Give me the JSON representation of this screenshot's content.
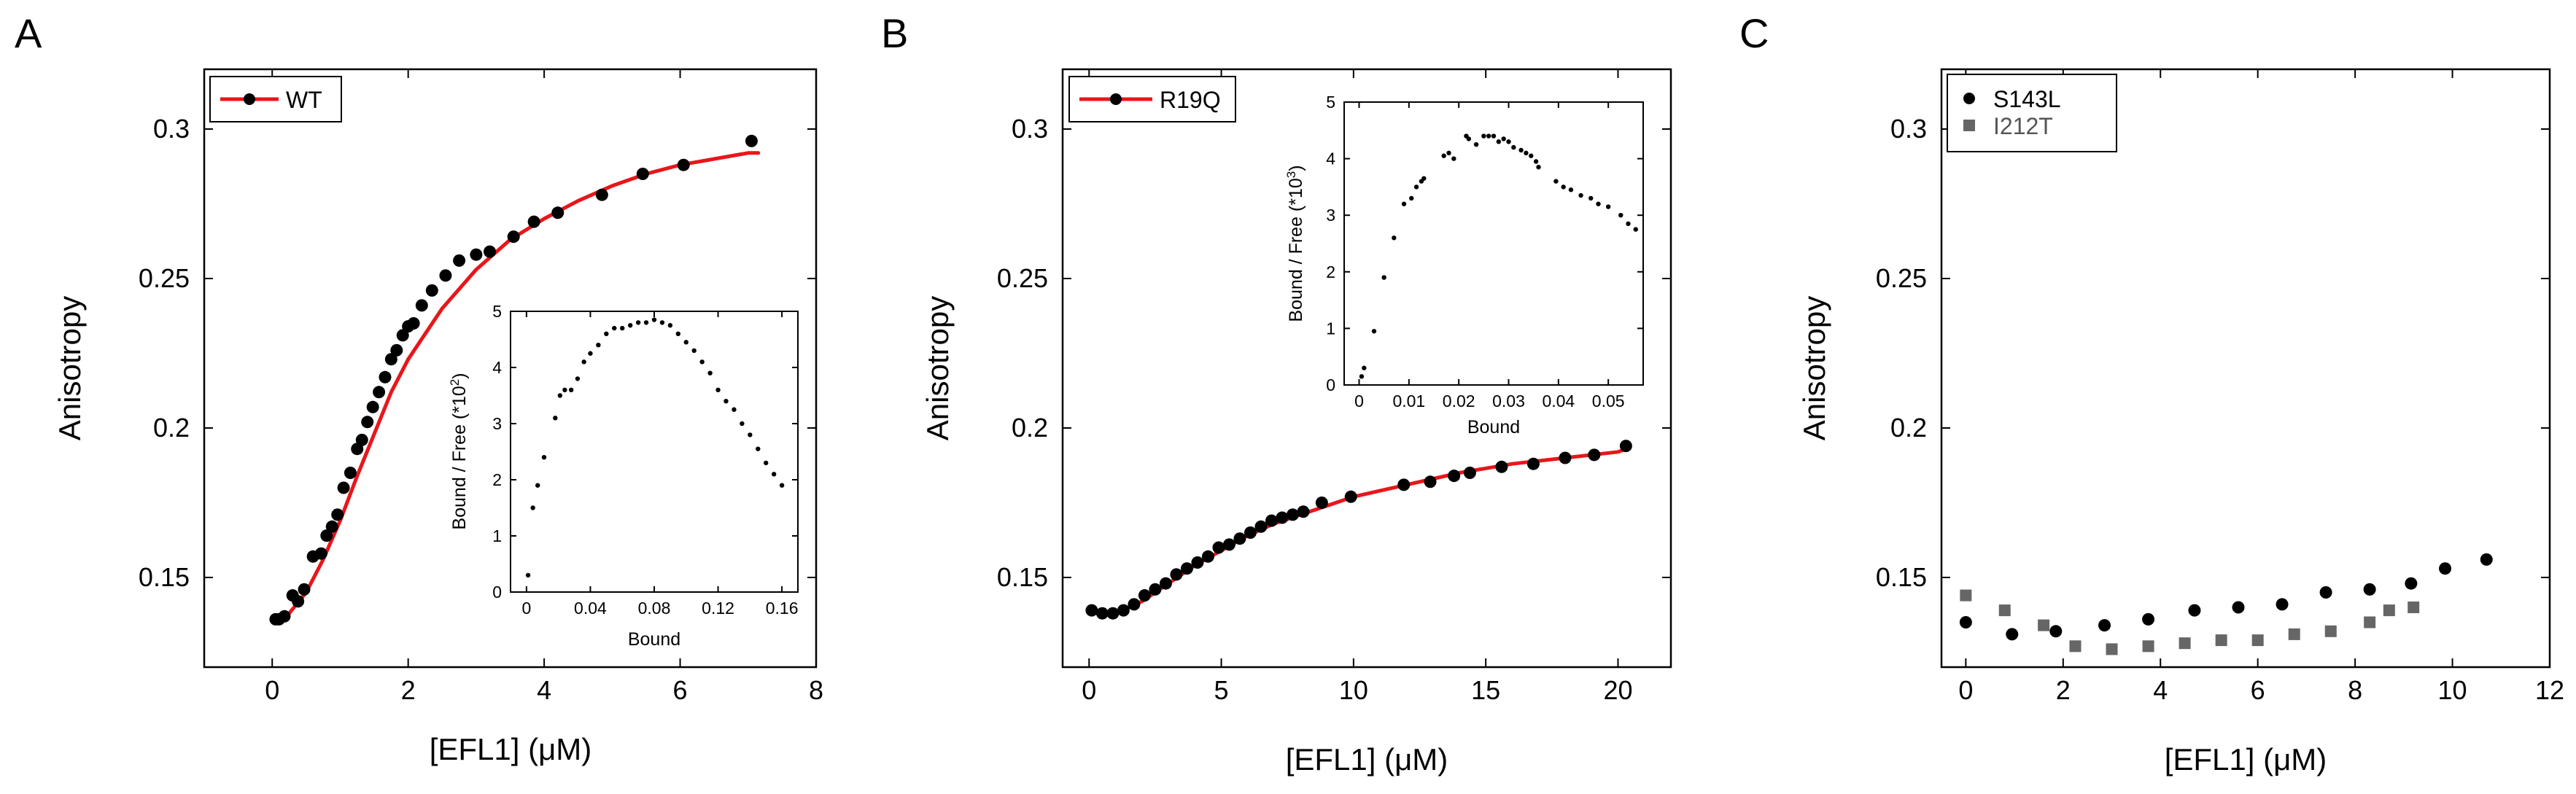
{
  "figure": {
    "colors": {
      "fit_line": "#e8161a",
      "marker_black": "#000000",
      "marker_gray": "#666666",
      "axis": "#000000"
    }
  },
  "chart_data": [
    {
      "panel": "A",
      "type": "scatter",
      "title": "",
      "xlabel": "[EFL1] (μM)",
      "ylabel": "Anisotropy",
      "xlim": [
        -1,
        8
      ],
      "ylim": [
        0.12,
        0.32
      ],
      "xticks": [
        0,
        2,
        4,
        6,
        8
      ],
      "yticks": [
        0.15,
        0.2,
        0.25,
        0.3
      ],
      "xtick_labels": [
        "0",
        "2",
        "4",
        "6",
        "8"
      ],
      "ytick_labels": [
        "0.15",
        "0.2",
        "0.25",
        "0.3"
      ],
      "legend": {
        "position": "top-left",
        "entries": [
          "WT"
        ]
      },
      "series": [
        {
          "name": "WT",
          "marker": "circle",
          "color": "#000000",
          "x": [
            0.05,
            0.1,
            0.18,
            0.3,
            0.38,
            0.47,
            0.6,
            0.72,
            0.8,
            0.88,
            0.96,
            1.05,
            1.15,
            1.25,
            1.32,
            1.4,
            1.48,
            1.57,
            1.66,
            1.75,
            1.83,
            1.92,
            2.0,
            2.08,
            2.2,
            2.35,
            2.55,
            2.75,
            3.0,
            3.2,
            3.55,
            3.85,
            4.2,
            4.85,
            5.45,
            6.05,
            7.05
          ],
          "y": [
            0.136,
            0.136,
            0.137,
            0.144,
            0.142,
            0.146,
            0.157,
            0.158,
            0.164,
            0.167,
            0.171,
            0.18,
            0.185,
            0.193,
            0.196,
            0.202,
            0.207,
            0.212,
            0.217,
            0.223,
            0.226,
            0.231,
            0.234,
            0.235,
            0.241,
            0.246,
            0.251,
            0.256,
            0.258,
            0.259,
            0.264,
            0.269,
            0.272,
            0.278,
            0.285,
            0.288,
            0.296
          ]
        },
        {
          "name": "WT fit",
          "style": "line",
          "color": "#e8161a",
          "x": [
            0,
            0.25,
            0.5,
            0.75,
            1.0,
            1.25,
            1.5,
            1.75,
            2.0,
            2.5,
            3.0,
            3.5,
            4.0,
            4.5,
            5.0,
            5.5,
            6.0,
            6.5,
            7.0,
            7.15
          ],
          "y": [
            0.136,
            0.138,
            0.145,
            0.156,
            0.169,
            0.184,
            0.198,
            0.212,
            0.223,
            0.24,
            0.253,
            0.263,
            0.27,
            0.276,
            0.281,
            0.285,
            0.288,
            0.29,
            0.292,
            0.292
          ]
        }
      ],
      "inset": {
        "type": "scatter",
        "xlabel": "Bound",
        "ylabel": "Bound / Free (*10",
        "ylabel_exponent": "2",
        "ylabel_close": ")",
        "xlim": [
          -0.01,
          0.17
        ],
        "ylim": [
          0,
          5
        ],
        "xticks": [
          0,
          0.04,
          0.08,
          0.12,
          0.16
        ],
        "yticks": [
          0,
          1,
          2,
          3,
          4,
          5
        ],
        "xtick_labels": [
          "0",
          "0.04",
          "0.08",
          "0.12",
          "0.16"
        ],
        "ytick_labels": [
          "0",
          "1",
          "2",
          "3",
          "4",
          "5"
        ],
        "x": [
          0.001,
          0.004,
          0.007,
          0.011,
          0.018,
          0.021,
          0.024,
          0.028,
          0.032,
          0.036,
          0.04,
          0.045,
          0.05,
          0.055,
          0.06,
          0.065,
          0.07,
          0.075,
          0.08,
          0.085,
          0.09,
          0.095,
          0.1,
          0.105,
          0.11,
          0.115,
          0.12,
          0.125,
          0.13,
          0.135,
          0.14,
          0.145,
          0.15,
          0.155,
          0.16
        ],
        "y": [
          0.3,
          1.5,
          1.9,
          2.4,
          3.1,
          3.5,
          3.6,
          3.6,
          3.8,
          4.1,
          4.25,
          4.4,
          4.6,
          4.7,
          4.7,
          4.75,
          4.8,
          4.8,
          4.85,
          4.8,
          4.75,
          4.6,
          4.45,
          4.3,
          4.1,
          3.9,
          3.6,
          3.4,
          3.25,
          3.0,
          2.8,
          2.55,
          2.3,
          2.1,
          1.9
        ]
      }
    },
    {
      "panel": "B",
      "type": "scatter",
      "title": "",
      "xlabel": "[EFL1] (μM)",
      "ylabel": "Anisotropy",
      "xlim": [
        -1,
        22
      ],
      "ylim": [
        0.12,
        0.32
      ],
      "xticks": [
        0,
        5,
        10,
        15,
        20
      ],
      "yticks": [
        0.15,
        0.2,
        0.25,
        0.3
      ],
      "xtick_labels": [
        "0",
        "5",
        "10",
        "15",
        "20"
      ],
      "ytick_labels": [
        "0.15",
        "0.2",
        "0.25",
        "0.3"
      ],
      "legend": {
        "position": "top-left",
        "entries": [
          "R19Q"
        ]
      },
      "series": [
        {
          "name": "R19Q",
          "marker": "circle",
          "color": "#000000",
          "x": [
            0.1,
            0.5,
            0.9,
            1.3,
            1.7,
            2.1,
            2.5,
            2.9,
            3.3,
            3.7,
            4.1,
            4.5,
            4.9,
            5.3,
            5.7,
            6.1,
            6.5,
            6.9,
            7.3,
            7.7,
            8.1,
            8.8,
            9.9,
            11.9,
            12.9,
            13.8,
            14.4,
            15.6,
            16.8,
            18.0,
            19.1,
            20.3
          ],
          "y": [
            0.139,
            0.138,
            0.138,
            0.139,
            0.141,
            0.144,
            0.146,
            0.148,
            0.151,
            0.153,
            0.155,
            0.157,
            0.16,
            0.161,
            0.163,
            0.165,
            0.167,
            0.169,
            0.17,
            0.171,
            0.172,
            0.175,
            0.177,
            0.181,
            0.182,
            0.184,
            0.185,
            0.187,
            0.188,
            0.19,
            0.191,
            0.194
          ]
        },
        {
          "name": "R19Q fit",
          "style": "line",
          "color": "#e8161a",
          "x": [
            1.0,
            2.0,
            3.0,
            4.0,
            5.0,
            6.0,
            7.0,
            8.0,
            9.0,
            10.0,
            12.0,
            14.0,
            16.0,
            18.0,
            20.0,
            20.3
          ],
          "y": [
            0.138,
            0.142,
            0.148,
            0.154,
            0.159,
            0.164,
            0.168,
            0.171,
            0.174,
            0.177,
            0.181,
            0.185,
            0.188,
            0.19,
            0.192,
            0.193
          ]
        }
      ],
      "inset": {
        "type": "scatter",
        "xlabel": "Bound",
        "ylabel": "Bound / Free (*10",
        "ylabel_exponent": "3",
        "ylabel_close": ")",
        "xlim": [
          -0.003,
          0.057
        ],
        "ylim": [
          0,
          5
        ],
        "xticks": [
          0,
          0.01,
          0.02,
          0.03,
          0.04,
          0.05
        ],
        "yticks": [
          0,
          1,
          2,
          3,
          4,
          5
        ],
        "xtick_labels": [
          "0",
          "0.01",
          "0.02",
          "0.03",
          "0.04",
          "0.05"
        ],
        "ytick_labels": [
          "0",
          "1",
          "2",
          "3",
          "4",
          "5"
        ],
        "x": [
          0.0005,
          0.001,
          0.003,
          0.005,
          0.007,
          0.009,
          0.0105,
          0.0115,
          0.0125,
          0.013,
          0.017,
          0.018,
          0.019,
          0.0215,
          0.022,
          0.0235,
          0.025,
          0.026,
          0.027,
          0.028,
          0.029,
          0.03,
          0.031,
          0.0325,
          0.0335,
          0.0345,
          0.0355,
          0.036,
          0.0395,
          0.041,
          0.0425,
          0.0445,
          0.0465,
          0.048,
          0.05,
          0.0525,
          0.054,
          0.0555
        ],
        "y": [
          0.15,
          0.3,
          0.95,
          1.9,
          2.6,
          3.2,
          3.3,
          3.5,
          3.6,
          3.65,
          4.05,
          4.1,
          4.0,
          4.4,
          4.35,
          4.25,
          4.4,
          4.4,
          4.4,
          4.3,
          4.35,
          4.3,
          4.2,
          4.15,
          4.1,
          4.05,
          3.95,
          3.85,
          3.6,
          3.5,
          3.45,
          3.35,
          3.3,
          3.2,
          3.15,
          3.0,
          2.85,
          2.75
        ]
      }
    },
    {
      "panel": "C",
      "type": "scatter",
      "title": "",
      "xlabel": "[EFL1] (μM)",
      "ylabel": "Anisotropy",
      "xlim": [
        -0.5,
        12
      ],
      "ylim": [
        0.12,
        0.32
      ],
      "xticks": [
        0,
        2,
        4,
        6,
        8,
        10,
        12
      ],
      "yticks": [
        0.15,
        0.2,
        0.25,
        0.3
      ],
      "xtick_labels": [
        "0",
        "2",
        "4",
        "6",
        "8",
        "10",
        "12"
      ],
      "ytick_labels": [
        "0.15",
        "0.2",
        "0.25",
        "0.3"
      ],
      "legend": {
        "position": "top-left",
        "entries": [
          "S143L",
          "I212T"
        ]
      },
      "series": [
        {
          "name": "S143L",
          "marker": "circle",
          "color": "#000000",
          "x": [
            0.0,
            0.95,
            1.85,
            2.85,
            3.75,
            4.7,
            5.6,
            6.5,
            7.4,
            8.3,
            9.15,
            9.85,
            10.7
          ],
          "y": [
            0.135,
            0.131,
            0.132,
            0.134,
            0.136,
            0.139,
            0.14,
            0.141,
            0.145,
            0.146,
            0.148,
            0.153,
            0.156
          ]
        },
        {
          "name": "I212T",
          "marker": "square",
          "color": "#666666",
          "x": [
            0.0,
            0.8,
            1.6,
            2.25,
            3.0,
            3.75,
            4.5,
            5.25,
            6.0,
            6.75,
            7.5,
            8.3,
            8.7,
            9.2
          ],
          "y": [
            0.144,
            0.139,
            0.134,
            0.127,
            0.126,
            0.127,
            0.128,
            0.129,
            0.129,
            0.131,
            0.132,
            0.135,
            0.139,
            0.14
          ]
        }
      ]
    }
  ]
}
